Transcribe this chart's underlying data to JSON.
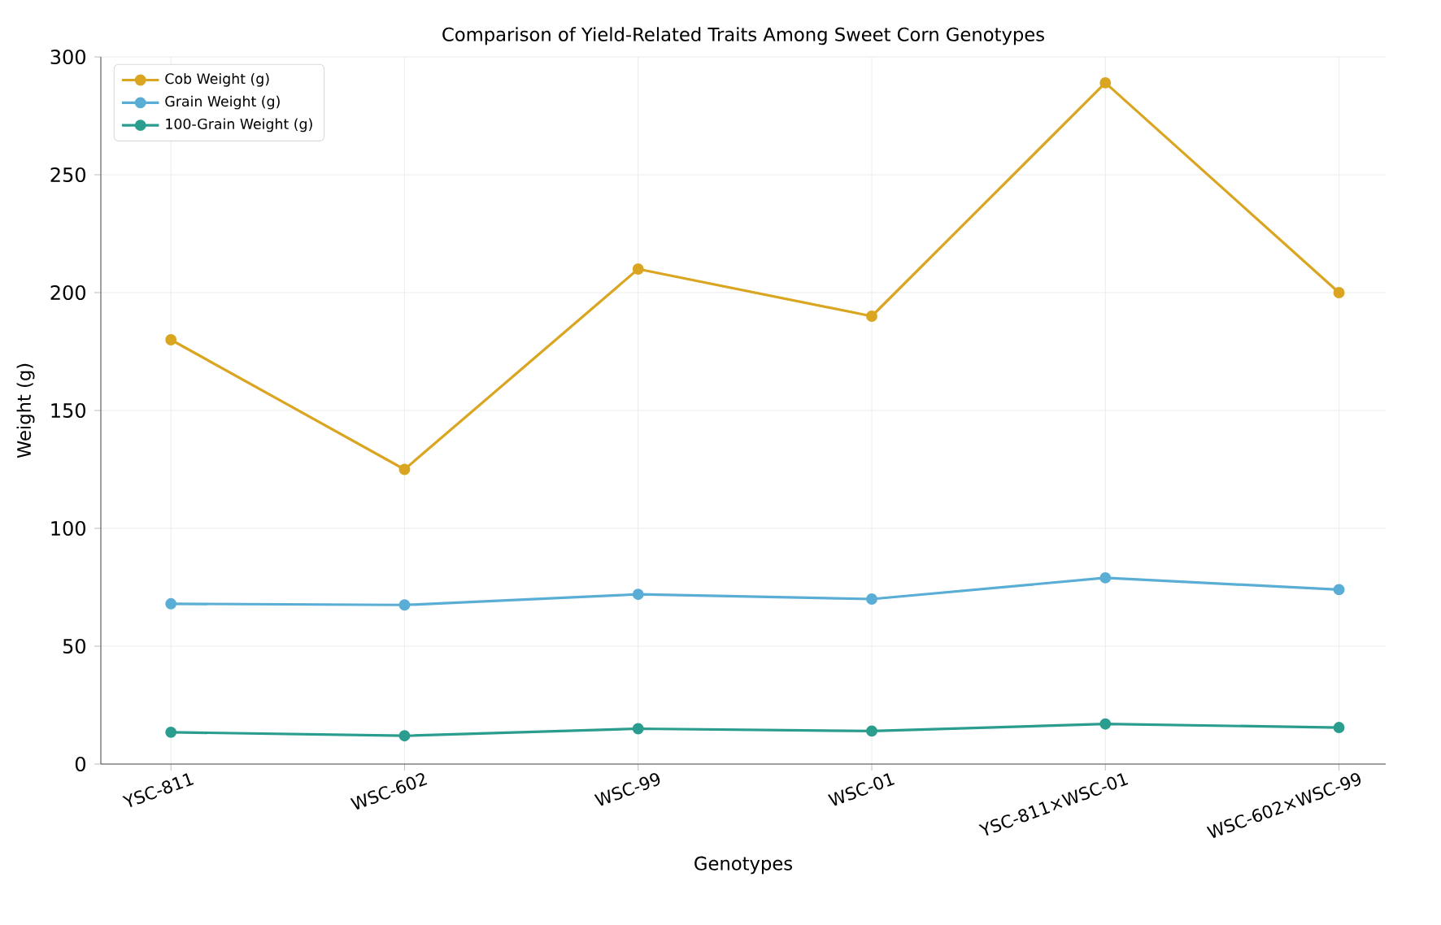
{
  "chart_data": {
    "type": "line",
    "title": "Comparison of Yield-Related Traits Among Sweet Corn Genotypes",
    "xlabel": "Genotypes",
    "ylabel": "Weight (g)",
    "categories": [
      "YSC-811",
      "WSC-602",
      "WSC-99",
      "WSC-01",
      "YSC-811×WSC-01",
      "WSC-602×WSC-99"
    ],
    "series": [
      {
        "name": "Cob Weight (g)",
        "color": "#daa520",
        "values": [
          180,
          125,
          210,
          190,
          289,
          200
        ]
      },
      {
        "name": "Grain Weight (g)",
        "color": "#5aaed6",
        "values": [
          68,
          67.5,
          72,
          70,
          79,
          74
        ]
      },
      {
        "name": "100-Grain Weight (g)",
        "color": "#2a9d8f",
        "values": [
          13.5,
          12,
          15,
          14,
          17,
          15.5
        ]
      }
    ],
    "ylim": [
      0,
      300
    ],
    "yticks": [
      0,
      50,
      100,
      150,
      200,
      250,
      300
    ],
    "grid": true,
    "legend": "top left",
    "marker": "circle",
    "line_style": "solid"
  }
}
